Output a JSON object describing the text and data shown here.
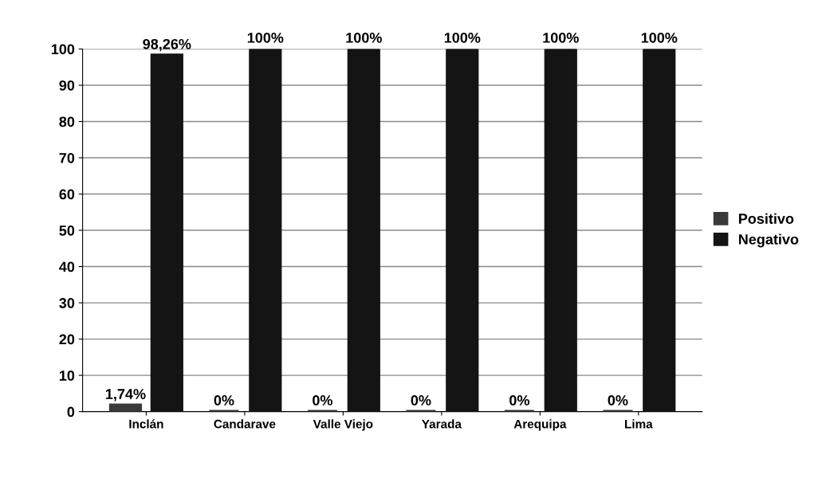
{
  "chart_data": {
    "type": "bar",
    "categories": [
      "Inclán",
      "Candarave",
      "Valle Viejo",
      "Yarada",
      "Arequipa",
      "Lima"
    ],
    "series": [
      {
        "name": "Positivo",
        "color": "#3a3a3a",
        "values": [
          1.74,
          0,
          0,
          0,
          0,
          0
        ],
        "value_labels": [
          "1,74%",
          "0%",
          "0%",
          "0%",
          "0%",
          "0%"
        ]
      },
      {
        "name": "Negativo",
        "color": "#141414",
        "values": [
          98.26,
          100,
          100,
          100,
          100,
          100
        ],
        "value_labels": [
          "98,26%",
          "100%",
          "100%",
          "100%",
          "100%",
          "100%"
        ]
      }
    ],
    "ylim": [
      0,
      100
    ],
    "yticks": [
      0,
      10,
      20,
      30,
      40,
      50,
      60,
      70,
      80,
      90,
      100
    ],
    "grid": "y",
    "legend": "right"
  }
}
